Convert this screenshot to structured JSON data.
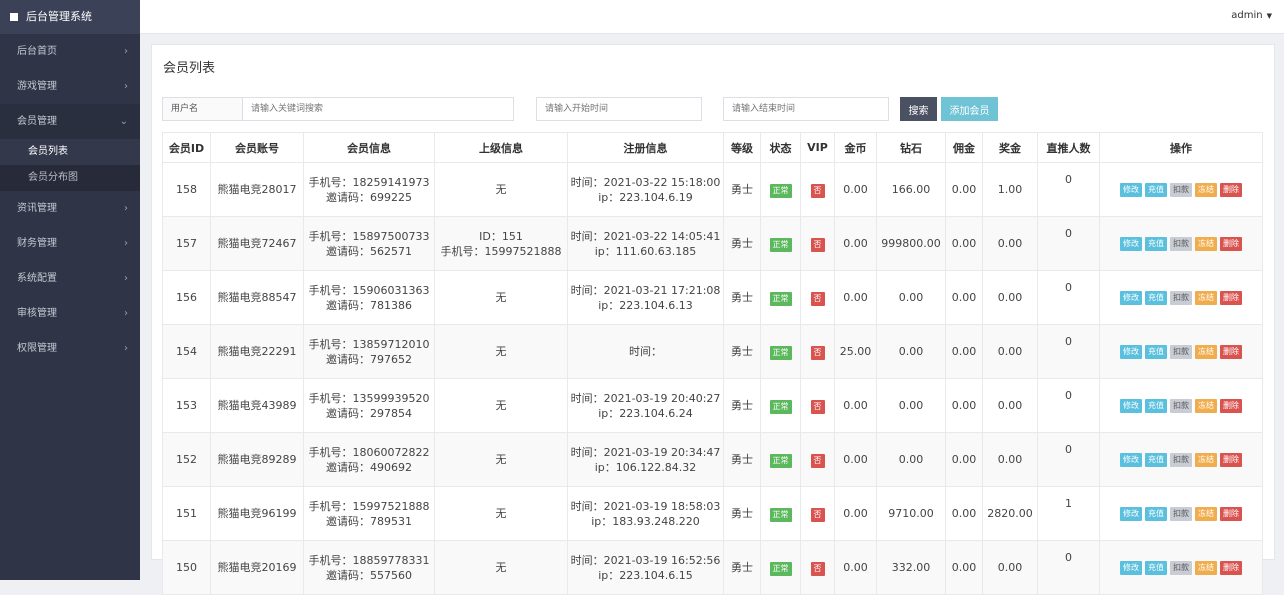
{
  "sidebar": {
    "brand": "后台管理系统",
    "items": [
      {
        "label": "后台首页",
        "chev": "›"
      },
      {
        "label": "游戏管理",
        "chev": "›"
      },
      {
        "label": "会员管理",
        "chev": "⌄"
      },
      {
        "label": "资讯管理",
        "chev": "›"
      },
      {
        "label": "财务管理",
        "chev": "›"
      },
      {
        "label": "系统配置",
        "chev": "›"
      },
      {
        "label": "审核管理",
        "chev": "›"
      },
      {
        "label": "权限管理",
        "chev": "›"
      }
    ],
    "sub_items": [
      {
        "label": "会员列表"
      },
      {
        "label": "会员分布图"
      }
    ]
  },
  "topbar": {
    "user": "admin",
    "caret": "▼"
  },
  "panel": {
    "title": "会员列表"
  },
  "filters": {
    "user_label": "用户名",
    "keyword_placeholder": "请输入关键词搜索",
    "start_placeholder": "请输入开始时间",
    "end_placeholder": "请输入结束时间",
    "search_label": "搜索",
    "add_label": "添加会员"
  },
  "table": {
    "headers": [
      "会员ID",
      "会员账号",
      "会员信息",
      "上级信息",
      "注册信息",
      "等级",
      "状态",
      "VIP",
      "金币",
      "钻石",
      "佣金",
      "奖金",
      "直推人数",
      "操作"
    ],
    "ops": [
      "修改",
      "充值",
      "扣款",
      "冻结",
      "删除"
    ],
    "status_ok": "正常",
    "vip_no": "否",
    "rows": [
      {
        "id": "158",
        "account": "熊猫电竞28017",
        "phone": "手机号：18259141973",
        "invite": "邀请码：699225",
        "sup1": "无",
        "sup2": "",
        "reg_time": "时间：2021-03-22 15:18:00",
        "reg_ip": "ip：223.104.6.19",
        "level": "勇士",
        "gold": "0.00",
        "diamond": "166.00",
        "commission": "0.00",
        "bonus": "1.00",
        "direct": "0"
      },
      {
        "id": "157",
        "account": "熊猫电竞72467",
        "phone": "手机号：15897500733",
        "invite": "邀请码：562571",
        "sup1": "ID：151",
        "sup2": "手机号：15997521888",
        "reg_time": "时间：2021-03-22 14:05:41",
        "reg_ip": "ip：111.60.63.185",
        "level": "勇士",
        "gold": "0.00",
        "diamond": "999800.00",
        "commission": "0.00",
        "bonus": "0.00",
        "direct": "0"
      },
      {
        "id": "156",
        "account": "熊猫电竞88547",
        "phone": "手机号：15906031363",
        "invite": "邀请码：781386",
        "sup1": "无",
        "sup2": "",
        "reg_time": "时间：2021-03-21 17:21:08",
        "reg_ip": "ip：223.104.6.13",
        "level": "勇士",
        "gold": "0.00",
        "diamond": "0.00",
        "commission": "0.00",
        "bonus": "0.00",
        "direct": "0"
      },
      {
        "id": "154",
        "account": "熊猫电竞22291",
        "phone": "手机号：13859712010",
        "invite": "邀请码：797652",
        "sup1": "无",
        "sup2": "",
        "reg_time": "时间：",
        "reg_ip": "",
        "level": "勇士",
        "gold": "25.00",
        "diamond": "0.00",
        "commission": "0.00",
        "bonus": "0.00",
        "direct": "0"
      },
      {
        "id": "153",
        "account": "熊猫电竞43989",
        "phone": "手机号：13599939520",
        "invite": "邀请码：297854",
        "sup1": "无",
        "sup2": "",
        "reg_time": "时间：2021-03-19 20:40:27",
        "reg_ip": "ip：223.104.6.24",
        "level": "勇士",
        "gold": "0.00",
        "diamond": "0.00",
        "commission": "0.00",
        "bonus": "0.00",
        "direct": "0"
      },
      {
        "id": "152",
        "account": "熊猫电竞89289",
        "phone": "手机号：18060072822",
        "invite": "邀请码：490692",
        "sup1": "无",
        "sup2": "",
        "reg_time": "时间：2021-03-19 20:34:47",
        "reg_ip": "ip：106.122.84.32",
        "level": "勇士",
        "gold": "0.00",
        "diamond": "0.00",
        "commission": "0.00",
        "bonus": "0.00",
        "direct": "0"
      },
      {
        "id": "151",
        "account": "熊猫电竞96199",
        "phone": "手机号：15997521888",
        "invite": "邀请码：789531",
        "sup1": "无",
        "sup2": "",
        "reg_time": "时间：2021-03-19 18:58:03",
        "reg_ip": "ip：183.93.248.220",
        "level": "勇士",
        "gold": "0.00",
        "diamond": "9710.00",
        "commission": "0.00",
        "bonus": "2820.00",
        "direct": "1"
      },
      {
        "id": "150",
        "account": "熊猫电竞20169",
        "phone": "手机号：18859778331",
        "invite": "邀请码：557560",
        "sup1": "无",
        "sup2": "",
        "reg_time": "时间：2021-03-19 16:52:56",
        "reg_ip": "ip：223.104.6.15",
        "level": "勇士",
        "gold": "0.00",
        "diamond": "332.00",
        "commission": "0.00",
        "bonus": "0.00",
        "direct": "0"
      }
    ]
  }
}
